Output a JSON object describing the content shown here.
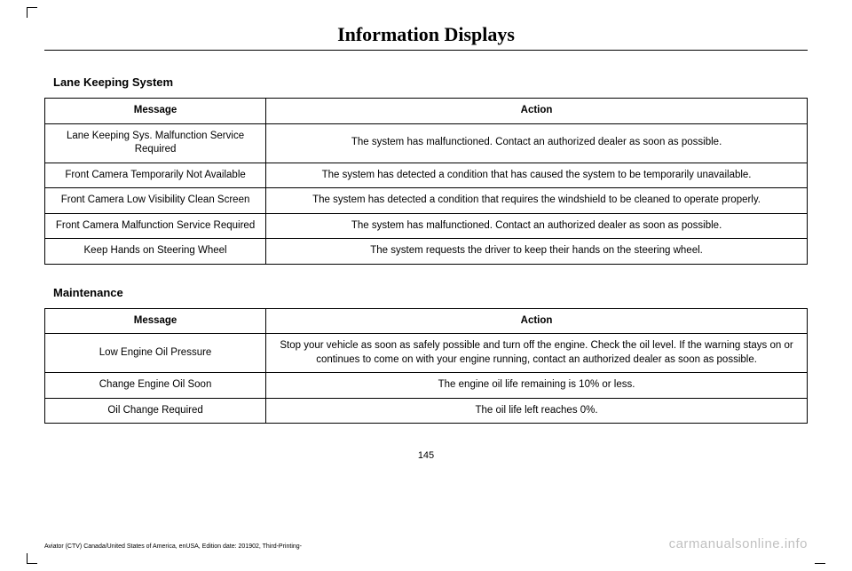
{
  "header": {
    "title": "Information Displays"
  },
  "sections": [
    {
      "title": "Lane Keeping System",
      "columns": [
        "Message",
        "Action"
      ],
      "rows": [
        {
          "message": "Lane Keeping Sys. Malfunction Service Required",
          "action": "The system has malfunctioned. Contact an authorized dealer as soon as possible."
        },
        {
          "message": "Front Camera Temporarily Not Available",
          "action": "The system has detected a condition that has caused the system to be temporarily unavailable."
        },
        {
          "message": "Front Camera Low Visibility Clean Screen",
          "action": "The system has detected a condition that requires the windshield to be cleaned to operate properly."
        },
        {
          "message": "Front Camera Malfunction Service Required",
          "action": "The system has malfunctioned. Contact an authorized dealer as soon as possible."
        },
        {
          "message": "Keep Hands on Steering Wheel",
          "action": "The system requests the driver to keep their hands on the steering wheel."
        }
      ]
    },
    {
      "title": "Maintenance",
      "columns": [
        "Message",
        "Action"
      ],
      "rows": [
        {
          "message": "Low Engine Oil Pressure",
          "action": "Stop your vehicle as soon as safely possible and turn off the engine. Check the oil level. If the warning stays on or continues to come on with your engine running, contact an authorized dealer as soon as possible."
        },
        {
          "message": "Change Engine Oil Soon",
          "action": "The engine oil life remaining is 10% or less."
        },
        {
          "message": "Oil Change Required",
          "action": "The oil life left reaches 0%."
        }
      ]
    }
  ],
  "page_number": "145",
  "footer": "Aviator (CTV) Canada/United States of America, enUSA, Edition date: 201902, Third-Printing-",
  "watermark": "carmanualsonline.info"
}
